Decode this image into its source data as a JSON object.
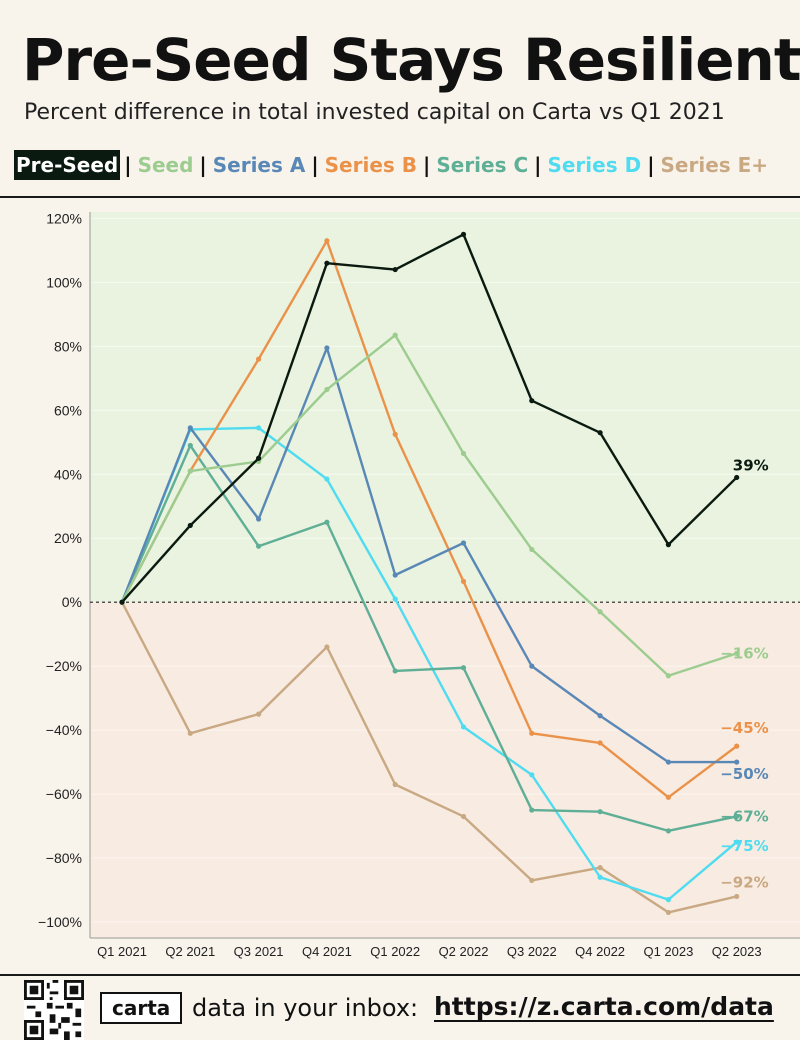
{
  "header": {
    "title": "Pre-Seed Stays Resilient",
    "subtitle": "Percent difference in total invested capital on Carta vs Q1 2021"
  },
  "legend": {
    "items": [
      "Pre-Seed",
      "Seed",
      "Series A",
      "Series B",
      "Series C",
      "Series D",
      "Series E+"
    ],
    "separator": "|"
  },
  "footer": {
    "logo": "carta",
    "text": "data in your inbox:",
    "link": "https://z.carta.com/data"
  },
  "colors": {
    "positive_region": "#e9f3df",
    "negative_region": "#f8ebe1",
    "zero_line": "#222222"
  },
  "chart_data": {
    "type": "line",
    "title": "Pre-Seed Stays Resilient",
    "subtitle": "Percent difference in total invested capital on Carta vs Q1 2021",
    "categories": [
      "Q1 2021",
      "Q2 2021",
      "Q3 2021",
      "Q4 2021",
      "Q1 2022",
      "Q2 2022",
      "Q3 2022",
      "Q4 2022",
      "Q1 2023",
      "Q2 2023"
    ],
    "ylim": [
      -105,
      122
    ],
    "yticks": [
      120,
      100,
      80,
      60,
      40,
      20,
      0,
      -20,
      -40,
      -60,
      -80,
      -100
    ],
    "ytick_labels": [
      "120%",
      "100%",
      "80%",
      "60%",
      "40%",
      "20%",
      "0%",
      "-20%",
      "-40%",
      "-60%",
      "-80%",
      "-100%"
    ],
    "grid": true,
    "series": [
      {
        "name": "Series E+",
        "color": "#c9a983",
        "end_label": "-92%",
        "values": [
          0,
          -41,
          -35,
          -14,
          -57,
          -67,
          -87,
          -83,
          -97,
          -92
        ]
      },
      {
        "name": "Series D",
        "color": "#4fdcf0",
        "end_label": "-75%",
        "values": [
          0,
          54,
          54.5,
          38.5,
          1,
          -39,
          -54,
          -86,
          -93,
          -75
        ]
      },
      {
        "name": "Series C",
        "color": "#5fae96",
        "end_label": "-67%",
        "values": [
          0,
          49,
          17.5,
          25,
          -21.5,
          -20.5,
          -65,
          -65.5,
          -71.5,
          -67
        ]
      },
      {
        "name": "Series B",
        "color": "#ea924a",
        "end_label": "-45%",
        "values": [
          0,
          41,
          76,
          113,
          52.5,
          6.5,
          -41,
          -44,
          -61,
          -45
        ]
      },
      {
        "name": "Series A",
        "color": "#5a88b6",
        "end_label": "-50%",
        "values": [
          0,
          54.5,
          26,
          79.5,
          8.5,
          18.5,
          -20,
          -35.5,
          -50,
          -50
        ]
      },
      {
        "name": "Seed",
        "color": "#9ccc8f",
        "end_label": "-16%",
        "values": [
          0,
          41,
          44,
          66.5,
          83.5,
          46.5,
          16.5,
          -3,
          -23,
          -16
        ]
      },
      {
        "name": "Pre-Seed",
        "color": "#0b1a10",
        "end_label": "39%",
        "values": [
          0,
          24,
          45,
          106,
          104,
          115,
          63,
          53,
          18,
          39
        ]
      }
    ]
  }
}
